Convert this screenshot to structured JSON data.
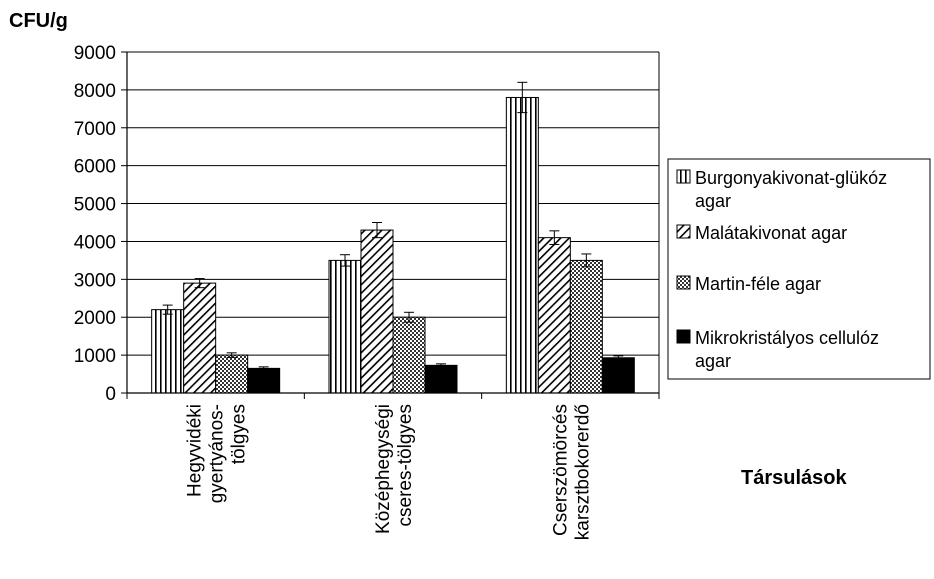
{
  "chart_data": {
    "type": "bar",
    "ylabel": "CFU/g",
    "xlabel": "Társulások",
    "ylim": [
      0,
      9000
    ],
    "yticks": [
      0,
      1000,
      2000,
      3000,
      4000,
      5000,
      6000,
      7000,
      8000,
      9000
    ],
    "grid": true,
    "legend_position": "right",
    "categories": [
      [
        "Hegyvidéki",
        "gyertyános-",
        "tölgyes"
      ],
      [
        "Középhegységi",
        "cseres-tölgyes"
      ],
      [
        "Cserszömörcés",
        "karsztbokorerdő"
      ]
    ],
    "series": [
      {
        "name": [
          "Burgonyakivonat-glükóz",
          "agar"
        ],
        "pattern": "vertical-stripes",
        "values": [
          2200,
          3500,
          7800
        ],
        "errors": [
          120,
          150,
          400
        ]
      },
      {
        "name": [
          "Malátakivonat agar"
        ],
        "pattern": "diagonal-hatch",
        "values": [
          2900,
          4300,
          4100
        ],
        "errors": [
          120,
          200,
          180
        ]
      },
      {
        "name": [
          "Martin-féle agar"
        ],
        "pattern": "crosshatch",
        "values": [
          1000,
          2000,
          3500
        ],
        "errors": [
          60,
          130,
          170
        ]
      },
      {
        "name": [
          "Mikrokristályos cellulóz",
          "agar"
        ],
        "pattern": "solid-black",
        "values": [
          650,
          730,
          930
        ],
        "errors": [
          40,
          40,
          50
        ]
      }
    ]
  }
}
